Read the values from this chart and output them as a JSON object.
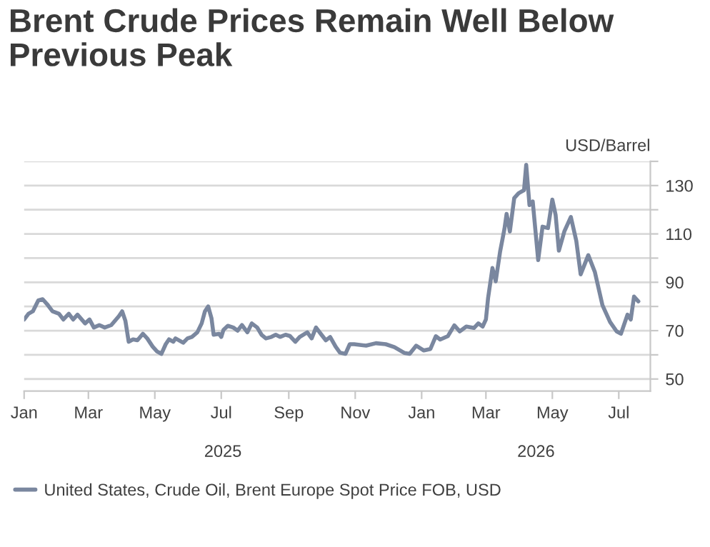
{
  "chart_data": {
    "type": "line",
    "title": "Brent Crude Prices Remain Well Below\nPrevious Peak",
    "ylabel": "USD/Barrel",
    "x": [
      "2025-01-01",
      "2025-01-05",
      "2025-01-09",
      "2025-01-14",
      "2025-01-18",
      "2025-01-22",
      "2025-01-27",
      "2025-02-02",
      "2025-02-06",
      "2025-02-11",
      "2025-02-15",
      "2025-02-19",
      "2025-02-26",
      "2025-03-02",
      "2025-03-06",
      "2025-03-11",
      "2025-03-16",
      "2025-03-22",
      "2025-03-29",
      "2025-04-01",
      "2025-04-04",
      "2025-04-07",
      "2025-04-11",
      "2025-04-15",
      "2025-04-20",
      "2025-04-24",
      "2025-04-29",
      "2025-05-03",
      "2025-05-07",
      "2025-05-11",
      "2025-05-14",
      "2025-05-18",
      "2025-05-20",
      "2025-05-27",
      "2025-05-31",
      "2025-06-04",
      "2025-06-09",
      "2025-06-13",
      "2025-06-16",
      "2025-06-19",
      "2025-06-22",
      "2025-06-24",
      "2025-06-29",
      "2025-07-01",
      "2025-07-03",
      "2025-07-07",
      "2025-07-12",
      "2025-07-16",
      "2025-07-20",
      "2025-07-25",
      "2025-07-29",
      "2025-08-03",
      "2025-08-07",
      "2025-08-11",
      "2025-08-16",
      "2025-08-20",
      "2025-08-24",
      "2025-08-29",
      "2025-09-02",
      "2025-09-07",
      "2025-09-11",
      "2025-09-18",
      "2025-09-22",
      "2025-09-26",
      "2025-10-01",
      "2025-10-05",
      "2025-10-09",
      "2025-10-14",
      "2025-10-18",
      "2025-10-23",
      "2025-10-27",
      "2025-10-31",
      "2025-11-11",
      "2025-11-20",
      "2025-11-29",
      "2025-12-07",
      "2025-12-16",
      "2025-12-21",
      "2025-12-27",
      "2026-01-03",
      "2026-01-09",
      "2026-01-14",
      "2026-01-18",
      "2026-01-25",
      "2026-01-31",
      "2026-02-05",
      "2026-02-11",
      "2026-02-18",
      "2026-02-22",
      "2026-02-26",
      "2026-03-01",
      "2026-03-03",
      "2026-03-07",
      "2026-03-10",
      "2026-03-14",
      "2026-03-18",
      "2026-03-20",
      "2026-03-23",
      "2026-03-27",
      "2026-03-31",
      "2026-04-05",
      "2026-04-07",
      "2026-04-10",
      "2026-04-13",
      "2026-04-18",
      "2026-04-22",
      "2026-04-27",
      "2026-05-01",
      "2026-05-04",
      "2026-05-07",
      "2026-05-12",
      "2026-05-18",
      "2026-05-23",
      "2026-05-27",
      "2026-06-03",
      "2026-06-09",
      "2026-06-16",
      "2026-06-23",
      "2026-06-29",
      "2026-07-03",
      "2026-07-09",
      "2026-07-12",
      "2026-07-15",
      "2026-07-19"
    ],
    "series": [
      {
        "name": "United States, Crude Oil, Brent Europe Spot Price FOB, USD",
        "color": "#7a879f",
        "values": [
          74.6,
          77,
          78,
          82.5,
          83,
          81,
          78,
          77,
          74.6,
          77,
          74.6,
          76.6,
          73,
          74.6,
          71.3,
          72.3,
          71.3,
          72.3,
          76,
          78,
          74,
          65.4,
          66.4,
          66,
          68.7,
          66.8,
          63.4,
          61.4,
          60.4,
          64.4,
          66.4,
          65.4,
          66.8,
          65,
          66.8,
          67.4,
          69.3,
          73,
          78,
          80,
          75.2,
          68.3,
          68.7,
          67.4,
          70.3,
          72,
          71.3,
          70,
          72.3,
          69.3,
          73,
          71.3,
          68.3,
          66.8,
          67.4,
          68.3,
          67.4,
          68.3,
          67.8,
          65.4,
          67.4,
          69.3,
          66.8,
          71.3,
          68.3,
          66,
          67.4,
          63.4,
          60.9,
          60.4,
          64.4,
          64.4,
          63.8,
          64.8,
          64.4,
          63.2,
          60.8,
          60.4,
          63.8,
          61.8,
          62.4,
          67.7,
          66.3,
          67.7,
          72.2,
          69.7,
          71.7,
          71.1,
          73,
          71.7,
          74.6,
          83.5,
          95.9,
          90.4,
          102.6,
          112,
          118.3,
          111,
          124.8,
          126.8,
          128.1,
          138.6,
          121.9,
          123.4,
          99.2,
          113,
          112.4,
          124.2,
          117.9,
          103.1,
          111,
          117,
          107.1,
          93.3,
          101.2,
          94.3,
          80.5,
          73.6,
          69.7,
          68.7,
          76.6,
          74.6,
          84.1,
          82.1
        ]
      }
    ],
    "xlim": [
      "2025-01-01",
      "2026-07-30"
    ],
    "xticks": [
      {
        "value": "2025-01-01",
        "label": "Jan"
      },
      {
        "value": "2025-03-01",
        "label": "Mar"
      },
      {
        "value": "2025-05-01",
        "label": "May"
      },
      {
        "value": "2025-07-01",
        "label": "Jul"
      },
      {
        "value": "2025-09-01",
        "label": "Sep"
      },
      {
        "value": "2025-11-01",
        "label": "Nov"
      },
      {
        "value": "2026-01-01",
        "label": "Jan"
      },
      {
        "value": "2026-03-01",
        "label": "Mar"
      },
      {
        "value": "2026-05-01",
        "label": "May"
      },
      {
        "value": "2026-07-01",
        "label": "Jul"
      }
    ],
    "ylim": [
      45,
      140
    ],
    "yticks": [
      50,
      {
        "value": 60,
        "label": null
      },
      70,
      {
        "value": 80,
        "label": null
      },
      90,
      {
        "value": 100,
        "label": null
      },
      110,
      {
        "value": 120,
        "label": null
      },
      130,
      {
        "value": 140,
        "label": null
      }
    ],
    "annotations": [
      "2025",
      "2026"
    ],
    "grid": "y",
    "legend": "bottom left",
    "line_style": "solid",
    "marker": "none"
  }
}
